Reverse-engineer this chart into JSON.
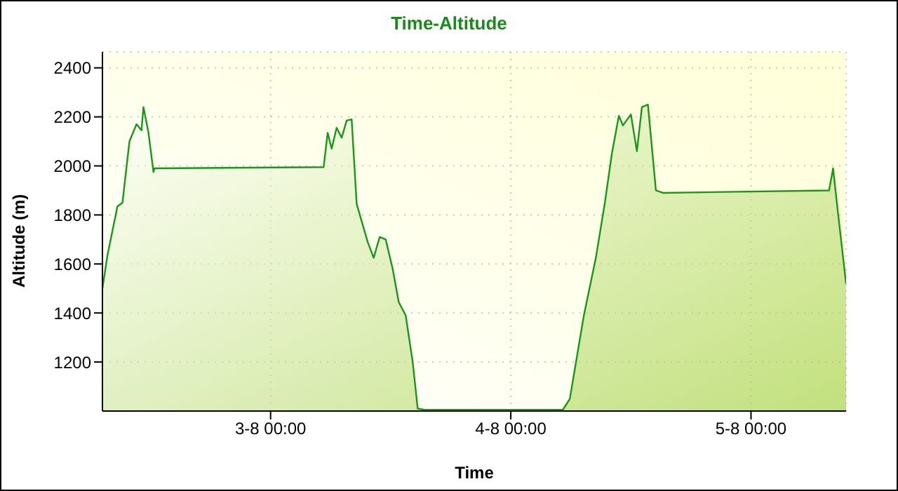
{
  "chart_data": {
    "type": "area",
    "title": "Time-Altitude",
    "xlabel": "Time",
    "ylabel": "Altitude (m)",
    "x": [
      "--08-02T07:12",
      "--08-02T07:42",
      "--08-02T08:42",
      "--08-02T09:12",
      "--08-02T09:54",
      "--08-02T10:36",
      "--08-02T11:06",
      "--08-02T11:18",
      "--08-02T11:48",
      "--08-02T12:18",
      "--08-02T12:24",
      "--08-03T05:18",
      "--08-03T05:42",
      "--08-03T06:06",
      "--08-03T06:36",
      "--08-03T07:06",
      "--08-03T07:36",
      "--08-03T08:06",
      "--08-03T08:36",
      "--08-03T09:42",
      "--08-03T10:18",
      "--08-03T10:54",
      "--08-03T11:30",
      "--08-03T12:12",
      "--08-03T12:48",
      "--08-03T13:30",
      "--08-03T14:12",
      "--08-03T14:42",
      "--08-03T15:24",
      "--08-04T05:12",
      "--08-04T05:54",
      "--08-04T07:18",
      "--08-04T08:30",
      "--08-04T09:24",
      "--08-04T10:06",
      "--08-04T10:48",
      "--08-04T11:12",
      "--08-04T12:00",
      "--08-04T12:36",
      "--08-04T13:06",
      "--08-04T13:42",
      "--08-04T14:30",
      "--08-04T15:12",
      "--08-05T07:48",
      "--08-05T08:12",
      "--08-05T08:42",
      "--08-05T09:30"
    ],
    "series": [
      {
        "color": "#1a961a",
        "values": [
          1500,
          1635,
          1835,
          1850,
          2100,
          2170,
          2145,
          2240,
          2135,
          1975,
          1990,
          1995,
          2135,
          2070,
          2155,
          2115,
          2185,
          2190,
          1845,
          1690,
          1625,
          1710,
          1700,
          1580,
          1445,
          1390,
          1200,
          1010,
          1005,
          1005,
          1050,
          1390,
          1625,
          1850,
          2050,
          2205,
          2165,
          2210,
          2060,
          2240,
          2250,
          1900,
          1890,
          1900,
          1990,
          1805,
          1520
        ]
      }
    ],
    "xlim": [
      "--08-02T07:12",
      "--08-05T09:30"
    ],
    "xticks": [
      {
        "value": "--08-03T00:00",
        "label": "3-8 00:00"
      },
      {
        "value": "--08-04T00:00",
        "label": "4-8 00:00"
      },
      {
        "value": "--08-05T00:00",
        "label": "5-8 00:00"
      }
    ],
    "ylim": [
      1000,
      2465
    ],
    "yticks": [
      1200,
      1400,
      1600,
      1800,
      2000,
      2200,
      2400
    ],
    "grid": true,
    "legend": false,
    "line_style": "solid",
    "marker": "none"
  }
}
